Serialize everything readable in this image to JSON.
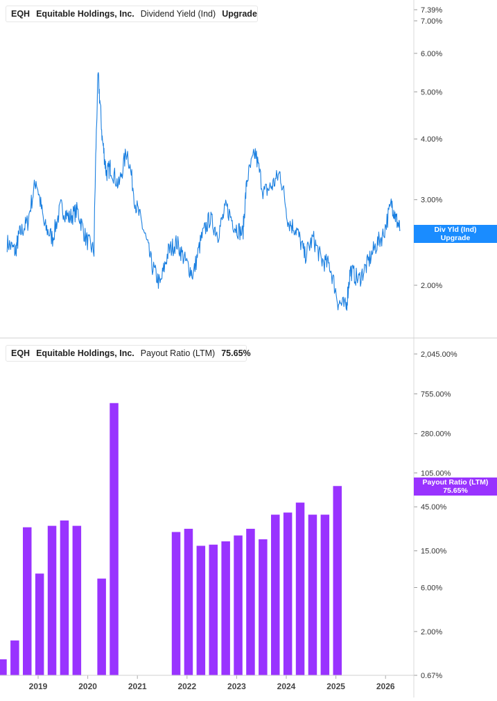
{
  "legend_top": {
    "ticker": "EQH",
    "company": "Equitable Holdings, Inc.",
    "metric": "Dividend Yield (Ind)",
    "value": "Upgrade",
    "color": "#1a7fe0"
  },
  "legend_bottom": {
    "ticker": "EQH",
    "company": "Equitable Holdings, Inc.",
    "metric": "Payout Ratio (LTM)",
    "value": "75.65%",
    "color": "#9933ff"
  },
  "tag_top": {
    "line1": "Div Yld (Ind)",
    "line2": "Upgrade",
    "color": "#1a8cff"
  },
  "tag_bottom": {
    "line1": "Payout Ratio (LTM)",
    "line2": "75.65%",
    "color": "#9933ff"
  },
  "chart_data": [
    {
      "type": "line",
      "name": "Dividend Yield (Ind)",
      "y_scale": "log",
      "y_ticks": [
        "7.39%",
        "7.00%",
        "6.00%",
        "5.00%",
        "4.00%",
        "3.00%",
        "2.00%"
      ],
      "y_tick_values": [
        7.39,
        7.0,
        6.0,
        5.0,
        4.0,
        3.0,
        2.0
      ],
      "x": [
        "2018-05",
        "2018-07",
        "2018-08",
        "2018-10",
        "2018-12",
        "2019-02",
        "2019-04",
        "2019-06",
        "2019-08",
        "2019-10",
        "2019-12",
        "2020-02",
        "2020-03",
        "2020-04",
        "2020-05",
        "2020-06",
        "2020-08",
        "2020-10",
        "2020-12",
        "2021-02",
        "2021-04",
        "2021-06",
        "2021-08",
        "2021-10",
        "2021-12",
        "2022-02",
        "2022-04",
        "2022-06",
        "2022-08",
        "2022-10",
        "2022-12",
        "2023-02",
        "2023-03",
        "2023-05",
        "2023-07",
        "2023-09",
        "2023-11",
        "2024-01",
        "2024-03",
        "2024-05",
        "2024-07",
        "2024-09",
        "2024-11",
        "2025-01",
        "2025-03",
        "2025-04",
        "2025-06",
        "2025-08",
        "2025-10",
        "2025-12",
        "2026-02",
        "2026-03",
        "2026-04"
      ],
      "values": [
        2.45,
        2.35,
        2.55,
        2.7,
        3.3,
        2.65,
        2.5,
        2.9,
        2.75,
        2.85,
        2.5,
        2.35,
        5.4,
        4.0,
        3.4,
        3.5,
        3.2,
        3.8,
        2.95,
        2.6,
        2.2,
        2.0,
        2.35,
        2.45,
        2.25,
        2.1,
        2.5,
        2.75,
        2.55,
        2.9,
        2.65,
        2.55,
        3.3,
        3.75,
        3.1,
        3.2,
        3.4,
        2.7,
        2.6,
        2.3,
        2.5,
        2.25,
        2.2,
        1.85,
        1.8,
        2.15,
        2.05,
        2.2,
        2.4,
        2.55,
        2.95,
        2.75,
        2.6
      ]
    },
    {
      "type": "bar",
      "name": "Payout Ratio (LTM)",
      "y_scale": "log",
      "y_ticks": [
        "2,045.00%",
        "755.00%",
        "280.00%",
        "105.00%",
        "45.00%",
        "15.00%",
        "6.00%",
        "2.00%",
        "0.67%"
      ],
      "y_tick_values": [
        2045,
        755,
        280,
        105,
        45,
        15,
        6,
        2,
        0.67
      ],
      "categories": [
        "2018Q1",
        "2018Q2",
        "2018Q3",
        "2018Q4",
        "2019Q1",
        "2019Q2",
        "2019Q3",
        "2020Q1",
        "2020Q2",
        "2021Q3",
        "2021Q4",
        "2022Q1",
        "2022Q2",
        "2022Q3",
        "2022Q4",
        "2023Q1",
        "2023Q2",
        "2023Q3",
        "2023Q4",
        "2024Q1",
        "2024Q2",
        "2024Q3",
        "2024Q4",
        "2025Q1"
      ],
      "x": [
        2018.28,
        2018.53,
        2018.78,
        2019.03,
        2019.28,
        2019.53,
        2019.78,
        2020.28,
        2020.53,
        2021.78,
        2022.03,
        2022.28,
        2022.53,
        2022.78,
        2023.03,
        2023.28,
        2023.53,
        2023.78,
        2024.03,
        2024.28,
        2024.53,
        2024.78,
        2025.03,
        2025.28
      ],
      "values": [
        1.0,
        1.6,
        27,
        8.5,
        28,
        32,
        28,
        7.5,
        600,
        24,
        26,
        17,
        17.5,
        19,
        22,
        26,
        20,
        37,
        39,
        50,
        37,
        37,
        75.65,
        0
      ]
    }
  ],
  "x_axis": {
    "labels": [
      "2019",
      "2020",
      "2021",
      "2022",
      "2023",
      "2024",
      "2025",
      "2026"
    ],
    "values": [
      2019,
      2020,
      2021,
      2022,
      2023,
      2024,
      2025,
      2026
    ]
  }
}
